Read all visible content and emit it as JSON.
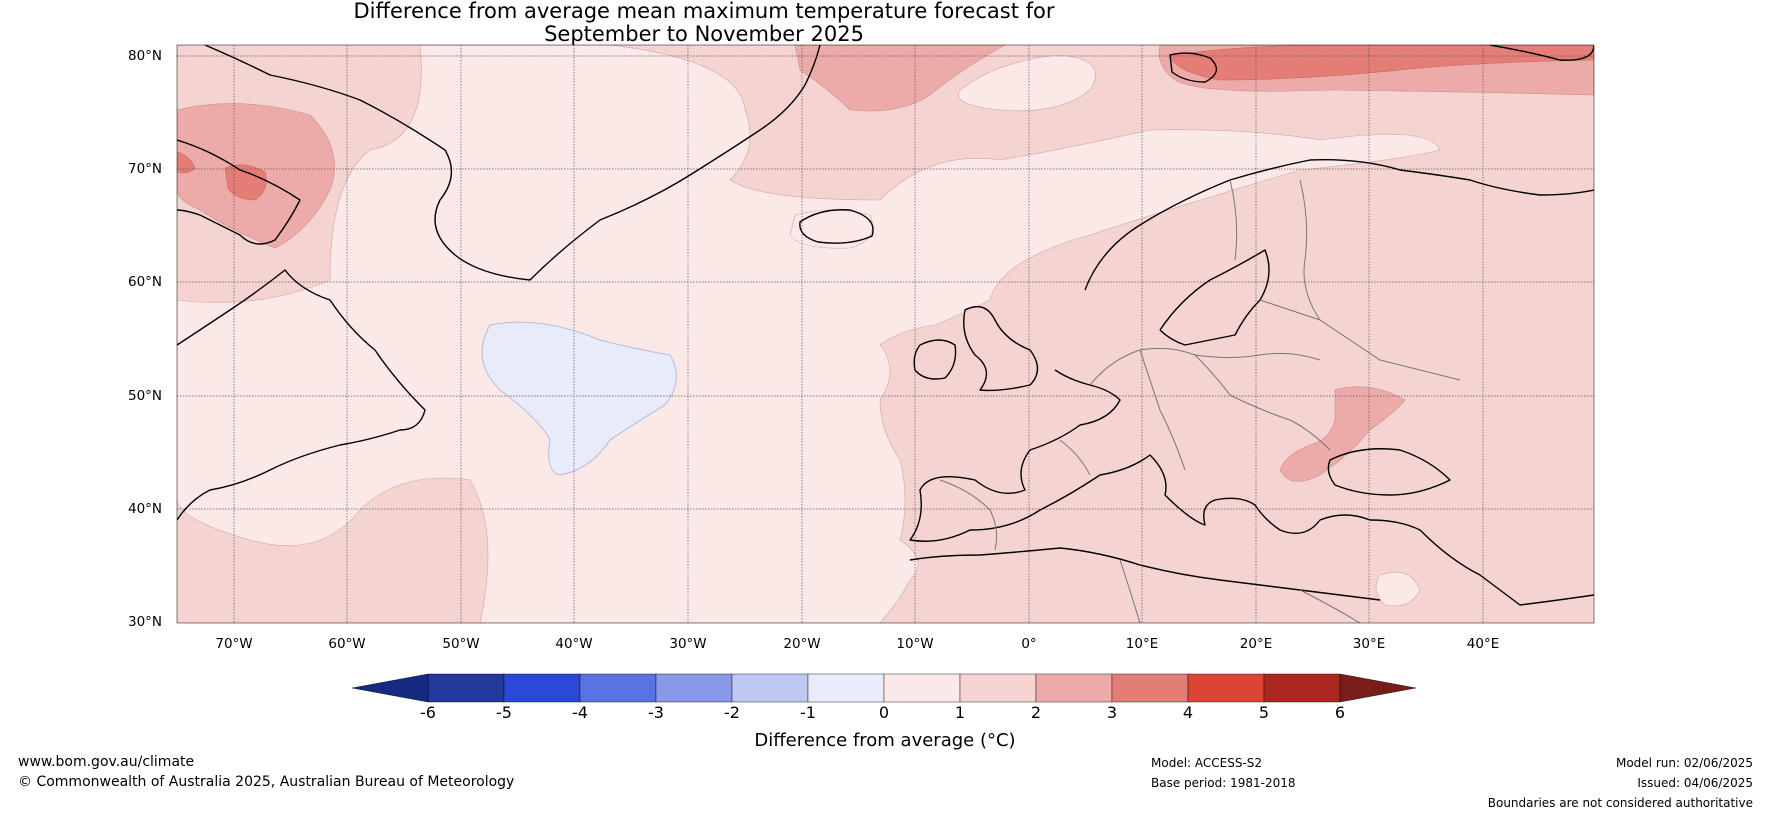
{
  "title": {
    "line1": "Difference from average mean maximum temperature forecast for",
    "line2": "September to November 2025"
  },
  "map": {
    "latitudes": [
      "80°N",
      "70°N",
      "60°N",
      "50°N",
      "40°N",
      "30°N"
    ],
    "longitudes": [
      "70°W",
      "60°W",
      "50°W",
      "40°W",
      "30°W",
      "20°W",
      "10°W",
      "0°",
      "10°E",
      "20°E",
      "30°E",
      "40°E"
    ],
    "background_anomaly_color": "#f5d3d1"
  },
  "colorbar": {
    "ticks": [
      "-6",
      "-5",
      "-4",
      "-3",
      "-2",
      "-1",
      "0",
      "1",
      "2",
      "3",
      "4",
      "5",
      "6"
    ],
    "colors": [
      "#23399b",
      "#2b49d8",
      "#5a72e2",
      "#8799e8",
      "#bfc8f2",
      "#e8ebfa",
      "#fbe9e8",
      "#f5d3d1",
      "#ecaba8",
      "#e47d75",
      "#dc4535",
      "#ad2721"
    ],
    "low_extend_color": "#172a81",
    "high_extend_color": "#781d1a",
    "label": "Difference from average (°C)"
  },
  "footer": {
    "website": "www.bom.gov.au/climate",
    "copyright": "© Commonwealth of Australia 2025, Australian Bureau of Meteorology",
    "model": "Model: ACCESS-S2",
    "base_period": "Base period: 1981-2018",
    "model_run": "Model run: 02/06/2025",
    "issued": "Issued: 04/06/2025",
    "disclaimer": "Boundaries are not considered authoritative"
  }
}
